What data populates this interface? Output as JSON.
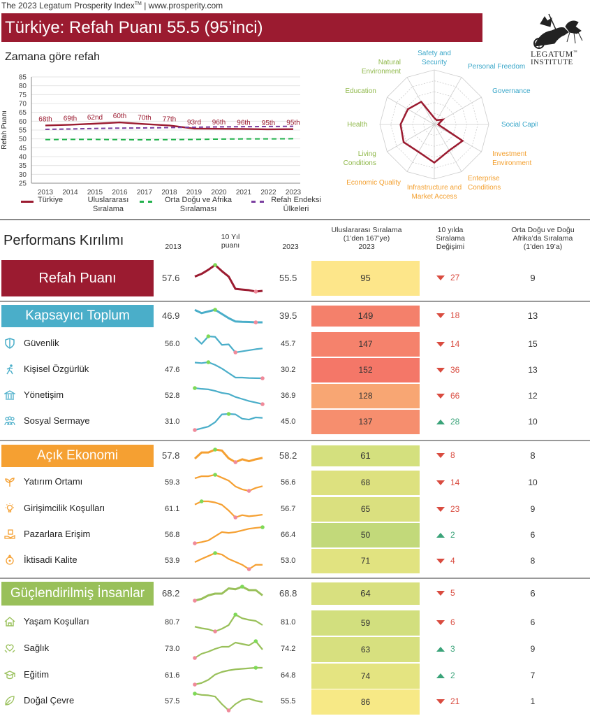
{
  "header": {
    "source_line": "The 2023 Legatum Prosperity Index",
    "tm": "TM",
    "site": " | www.prosperity.com",
    "title": "Türkiye: Refah Puanı 55.5 (95’inci)",
    "logo_line1": "LEGATUM",
    "logo_line1_tm": "™",
    "logo_line2": "INSTITUTE"
  },
  "over_time": {
    "title": "Zamana göre refah",
    "ylabel": "Refah Puanı",
    "legend": [
      {
        "label": "Türkiye",
        "color": "#9b1b30",
        "style": "solid"
      },
      {
        "label": "Uluslararası Sıralama",
        "color": "",
        "style": "none"
      },
      {
        "label": "Orta Doğu ve Afrika Sıralaması",
        "color": "#22b14c",
        "style": "dashed"
      },
      {
        "label": "Refah Endeksi Ülkeleri",
        "color": "#7b3fa0",
        "style": "dashed"
      }
    ]
  },
  "chart_data": [
    {
      "type": "line",
      "x": [
        "2013",
        "2014",
        "2015",
        "2016",
        "2017",
        "2018",
        "2019",
        "2020",
        "2021",
        "2022",
        "2023"
      ],
      "ylim": [
        25,
        85
      ],
      "yticks": [
        85,
        80,
        75,
        70,
        65,
        60,
        55,
        50,
        45,
        40,
        35,
        30,
        25
      ],
      "ylabel": "Refah Puanı",
      "series": [
        {
          "name": "Türkiye",
          "color": "#9b1b30",
          "values": [
            57.6,
            58.0,
            58.6,
            59.3,
            58.4,
            57.6,
            55.8,
            55.7,
            55.6,
            55.4,
            55.5
          ]
        },
        {
          "name": "Orta Doğu ve Afrika Sıralaması",
          "color": "#22b14c",
          "values": [
            49.6,
            49.7,
            49.7,
            49.6,
            49.5,
            49.6,
            49.7,
            49.9,
            50.0,
            50.0,
            50.1
          ]
        },
        {
          "name": "Refah Endeksi Ülkeleri",
          "color": "#7b3fa0",
          "values": [
            55.4,
            55.6,
            55.9,
            56.1,
            56.2,
            56.4,
            56.6,
            56.8,
            56.9,
            57.0,
            57.1
          ]
        }
      ],
      "rank_labels": [
        "68th",
        "69th",
        "62nd",
        "60th",
        "70th",
        "77th",
        "93rd",
        "96th",
        "96th",
        "95th",
        "95th"
      ]
    },
    {
      "type": "radar",
      "axes": [
        {
          "label": "Safety and Security",
          "color": "#3ba7c9",
          "value": 0.12
        },
        {
          "label": "Personal Freedom",
          "color": "#3ba7c9",
          "value": 0.09
        },
        {
          "label": "Governance",
          "color": "#3ba7c9",
          "value": 0.18
        },
        {
          "label": "Social Capital",
          "color": "#3ba7c9",
          "value": 0.07
        },
        {
          "label": "Investment Environment",
          "color": "#f3a030",
          "value": 0.6
        },
        {
          "label": "Enterprise Conditions",
          "color": "#f3a030",
          "value": 0.55
        },
        {
          "label": "Infrastructure and Market Access",
          "color": "#f3a030",
          "value": 0.7
        },
        {
          "label": "Economic Quality",
          "color": "#f3a030",
          "value": 0.58
        },
        {
          "label": "Living Conditions",
          "color": "#8fb84a",
          "value": 0.65
        },
        {
          "label": "Health",
          "color": "#8fb84a",
          "value": 0.62
        },
        {
          "label": "Education",
          "color": "#8fb84a",
          "value": 0.56
        },
        {
          "label": "Natural Environment",
          "color": "#8fb84a",
          "value": 0.48
        }
      ]
    }
  ],
  "performance": {
    "title": "Performans Kırılımı",
    "col_2013": "2013",
    "col_trend": [
      "10 Yıl",
      "puanı"
    ],
    "col_2023": "2023",
    "col_rank": [
      "Uluslararası Sıralama",
      "(1’den 167’ye)",
      "2023"
    ],
    "col_change": [
      "10 yılda",
      "Sıralama",
      "Değişimi"
    ],
    "col_region": [
      "Orta Doğu ve Doğu",
      "Afrika’da Sıralama",
      "(1’den 19’a)"
    ],
    "rows": [
      {
        "label": "Refah Puanı",
        "kind": "main",
        "icon": "",
        "color": "#9b1b30",
        "v2013": "57.6",
        "v2023": "55.5",
        "rank": "95",
        "rank_color": "#fde68a",
        "change": "27",
        "dir": "down",
        "region": "9",
        "trend": [
          57.6,
          58.0,
          58.6,
          59.3,
          58.4,
          57.6,
          55.8,
          55.7,
          55.6,
          55.4,
          55.5
        ]
      },
      {
        "label": "Kapsayıcı Toplum",
        "kind": "cat",
        "icon": "",
        "color": "#4aaec9",
        "v2013": "46.9",
        "v2023": "39.5",
        "rank": "149",
        "rank_color": "#f4806b",
        "change": "18",
        "dir": "down",
        "region": "13",
        "trend": [
          46.9,
          45.0,
          46.0,
          47.0,
          44.5,
          42.0,
          40.0,
          39.8,
          39.7,
          39.5,
          39.5
        ]
      },
      {
        "label": "Güvenlik",
        "kind": "sub",
        "icon": "shield-icon",
        "color": "#4aaec9",
        "v2013": "56.0",
        "v2023": "45.7",
        "rank": "147",
        "rank_color": "#f5826c",
        "change": "14",
        "dir": "down",
        "region": "15",
        "trend": [
          56.0,
          50.0,
          57.0,
          56.5,
          49.0,
          49.5,
          42.0,
          43.0,
          44.0,
          45.0,
          45.7
        ]
      },
      {
        "label": "Kişisel Özgürlük",
        "kind": "sub",
        "icon": "running-person-icon",
        "color": "#4aaec9",
        "v2013": "47.6",
        "v2023": "30.2",
        "rank": "152",
        "rank_color": "#f47768",
        "change": "36",
        "dir": "down",
        "region": "13",
        "trend": [
          47.6,
          47.0,
          48.0,
          45.0,
          41.0,
          36.0,
          31.0,
          31.0,
          30.5,
          30.3,
          30.2
        ]
      },
      {
        "label": "Yönetişim",
        "kind": "sub",
        "icon": "government-building-icon",
        "color": "#4aaec9",
        "v2013": "52.8",
        "v2023": "36.9",
        "rank": "128",
        "rank_color": "#f8a673",
        "change": "66",
        "dir": "down",
        "region": "12",
        "trend": [
          52.8,
          52.0,
          51.5,
          50.0,
          48.0,
          47.0,
          44.0,
          42.0,
          40.0,
          38.5,
          36.9
        ]
      },
      {
        "label": "Sosyal Sermaye",
        "kind": "sub",
        "icon": "people-group-icon",
        "color": "#4aaec9",
        "v2013": "31.0",
        "v2023": "45.0",
        "rank": "137",
        "rank_color": "#f68e6e",
        "change": "28",
        "dir": "up",
        "region": "10",
        "trend": [
          31.0,
          33.0,
          35.0,
          40.0,
          49.0,
          49.5,
          49.0,
          44.0,
          43.0,
          45.5,
          45.0
        ]
      },
      {
        "label": "Açık Ekonomi",
        "kind": "cat",
        "icon": "",
        "color": "#f5a032",
        "v2013": "57.8",
        "v2023": "58.2",
        "rank": "61",
        "rank_color": "#d4e07e",
        "change": "8",
        "dir": "down",
        "region": "8",
        "trend": [
          57.8,
          61.0,
          61.0,
          62.5,
          62.0,
          58.0,
          56.0,
          57.5,
          56.5,
          57.5,
          58.2
        ]
      },
      {
        "label": "Yatırım Ortamı",
        "kind": "sub",
        "icon": "sprout-icon",
        "color": "#f5a032",
        "v2013": "59.3",
        "v2023": "56.6",
        "rank": "68",
        "rank_color": "#dde17f",
        "change": "14",
        "dir": "down",
        "region": "10",
        "trend": [
          59.3,
          60.0,
          60.0,
          60.5,
          59.5,
          58.5,
          56.5,
          55.5,
          55.0,
          56.0,
          56.6
        ]
      },
      {
        "label": "Girişimcilik Koşulları",
        "kind": "sub",
        "icon": "lightbulb-icon",
        "color": "#f5a032",
        "v2013": "61.1",
        "v2023": "56.7",
        "rank": "65",
        "rank_color": "#dae07f",
        "change": "23",
        "dir": "down",
        "region": "9",
        "trend": [
          61.1,
          62.5,
          62.5,
          62.0,
          61.0,
          58.5,
          55.5,
          56.5,
          56.0,
          56.3,
          56.7
        ]
      },
      {
        "label": "Pazarlara Erişim",
        "kind": "sub",
        "icon": "hand-box-icon",
        "color": "#f5a032",
        "v2013": "56.8",
        "v2023": "66.4",
        "rank": "50",
        "rank_color": "#c2d97a",
        "change": "2",
        "dir": "up",
        "region": "6",
        "trend": [
          56.8,
          57.5,
          58.5,
          61.0,
          63.5,
          63.0,
          63.5,
          64.5,
          65.5,
          66.0,
          66.4
        ]
      },
      {
        "label": "İktisadi Kalite",
        "kind": "sub",
        "icon": "economy-cycle-icon",
        "color": "#f5a032",
        "v2013": "53.9",
        "v2023": "53.0",
        "rank": "71",
        "rank_color": "#e1e380",
        "change": "4",
        "dir": "down",
        "region": "8",
        "trend": [
          53.9,
          55.0,
          56.0,
          57.0,
          56.5,
          55.0,
          54.0,
          53.0,
          51.5,
          53.0,
          53.0
        ]
      },
      {
        "label": "Güçlendirilmiş İnsanlar",
        "kind": "cat",
        "icon": "",
        "color": "#99c05a",
        "v2013": "68.2",
        "v2023": "68.8",
        "rank": "64",
        "rank_color": "#d8e07f",
        "change": "5",
        "dir": "down",
        "region": "6",
        "trend": [
          68.2,
          68.4,
          68.8,
          69.0,
          69.0,
          69.6,
          69.5,
          69.8,
          69.4,
          69.4,
          68.8
        ]
      },
      {
        "label": "Yaşam Koşulları",
        "kind": "sub",
        "icon": "house-icon",
        "color": "#99c05a",
        "v2013": "80.7",
        "v2023": "81.0",
        "rank": "59",
        "rank_color": "#d2df7e",
        "change": "6",
        "dir": "down",
        "region": "6",
        "trend": [
          80.7,
          80.4,
          80.2,
          79.8,
          80.3,
          81.0,
          83.0,
          82.3,
          82.0,
          81.8,
          81.0
        ]
      },
      {
        "label": "Sağlık",
        "kind": "sub",
        "icon": "heart-hands-icon",
        "color": "#99c05a",
        "v2013": "73.0",
        "v2023": "74.2",
        "rank": "63",
        "rank_color": "#d7e07f",
        "change": "3",
        "dir": "up",
        "region": "9",
        "trend": [
          73.0,
          73.6,
          73.9,
          74.3,
          74.6,
          74.6,
          75.2,
          75.0,
          74.8,
          75.4,
          74.2
        ]
      },
      {
        "label": "Eğitim",
        "kind": "sub",
        "icon": "graduation-cap-icon",
        "color": "#99c05a",
        "v2013": "61.6",
        "v2023": "64.8",
        "rank": "74",
        "rank_color": "#e4e481",
        "change": "2",
        "dir": "up",
        "region": "7",
        "trend": [
          61.6,
          61.9,
          62.5,
          63.5,
          64.0,
          64.3,
          64.5,
          64.6,
          64.7,
          64.8,
          64.8
        ]
      },
      {
        "label": "Doğal Çevre",
        "kind": "sub",
        "icon": "leaf-icon",
        "color": "#99c05a",
        "v2013": "57.5",
        "v2023": "55.5",
        "rank": "86",
        "rank_color": "#f7e986",
        "change": "21",
        "dir": "down",
        "region": "1",
        "trend": [
          57.5,
          57.2,
          57.1,
          56.8,
          55.0,
          53.5,
          55.0,
          56.0,
          56.3,
          55.8,
          55.5
        ]
      }
    ]
  }
}
